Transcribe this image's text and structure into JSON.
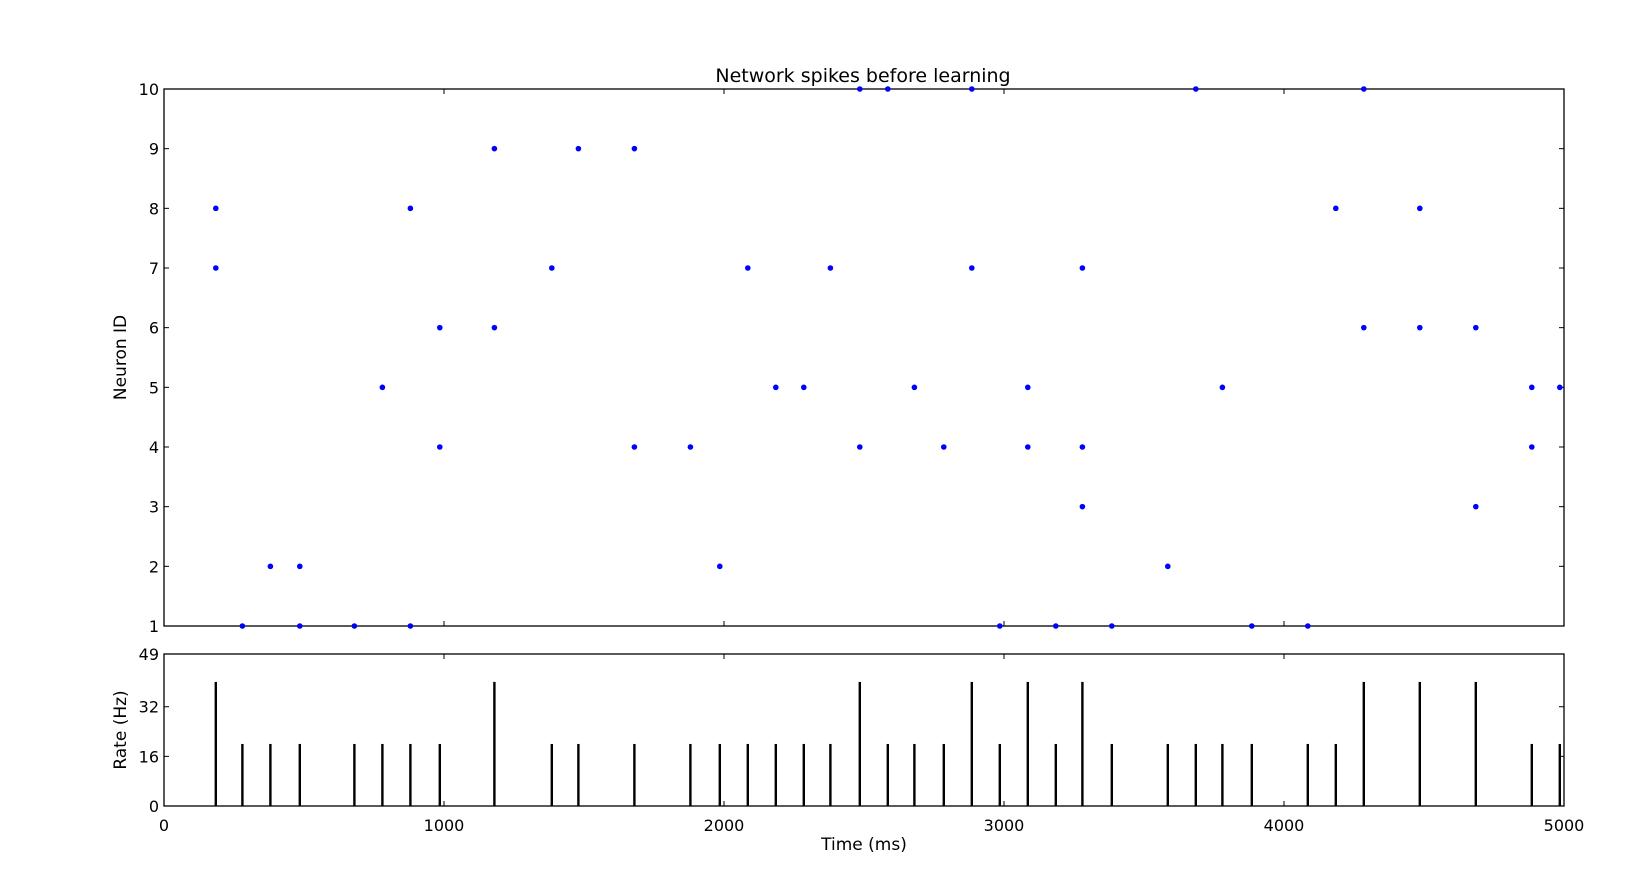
{
  "chart_data": [
    {
      "type": "scatter",
      "title": "Network spikes before learning",
      "xlabel": "",
      "ylabel": "Neuron ID",
      "xlim": [
        0,
        5000
      ],
      "ylim": [
        1,
        10
      ],
      "yticks": [
        "1",
        "2",
        "3",
        "4",
        "5",
        "6",
        "7",
        "8",
        "9",
        "10"
      ],
      "marker_color": "#0000ff",
      "grid": false,
      "series": [
        {
          "points": [
            [
              185,
              8
            ],
            [
              185,
              7
            ],
            [
              280,
              1
            ],
            [
              380,
              2
            ],
            [
              485,
              2
            ],
            [
              485,
              1
            ],
            [
              680,
              1
            ],
            [
              780,
              5
            ],
            [
              880,
              8
            ],
            [
              880,
              1
            ],
            [
              985,
              6
            ],
            [
              985,
              4
            ],
            [
              1180,
              9
            ],
            [
              1180,
              6
            ],
            [
              1385,
              7
            ],
            [
              1480,
              9
            ],
            [
              1680,
              9
            ],
            [
              1680,
              4
            ],
            [
              1880,
              4
            ],
            [
              1985,
              2
            ],
            [
              2085,
              7
            ],
            [
              2185,
              5
            ],
            [
              2285,
              5
            ],
            [
              2380,
              7
            ],
            [
              2485,
              10
            ],
            [
              2485,
              4
            ],
            [
              2585,
              10
            ],
            [
              2680,
              5
            ],
            [
              2785,
              4
            ],
            [
              2885,
              10
            ],
            [
              2885,
              7
            ],
            [
              2985,
              1
            ],
            [
              3085,
              5
            ],
            [
              3085,
              4
            ],
            [
              3185,
              1
            ],
            [
              3280,
              7
            ],
            [
              3280,
              4
            ],
            [
              3280,
              3
            ],
            [
              3385,
              1
            ],
            [
              3585,
              2
            ],
            [
              3685,
              10
            ],
            [
              3780,
              5
            ],
            [
              3885,
              1
            ],
            [
              4085,
              1
            ],
            [
              4185,
              8
            ],
            [
              4285,
              10
            ],
            [
              4285,
              6
            ],
            [
              4485,
              8
            ],
            [
              4485,
              6
            ],
            [
              4685,
              6
            ],
            [
              4685,
              3
            ],
            [
              4885,
              5
            ],
            [
              4885,
              4
            ],
            [
              4985,
              5
            ]
          ]
        }
      ]
    },
    {
      "type": "bar",
      "title": "",
      "xlabel": "Time (ms)",
      "ylabel": "Rate (Hz)",
      "xlim": [
        0,
        5000
      ],
      "ylim": [
        0,
        49
      ],
      "xticks": [
        "0",
        "1000",
        "2000",
        "3000",
        "4000",
        "5000"
      ],
      "yticks": [
        "0",
        "16",
        "32",
        "49"
      ],
      "bar_color": "#000000",
      "grid": false,
      "bars": [
        [
          185,
          40
        ],
        [
          280,
          20
        ],
        [
          380,
          20
        ],
        [
          485,
          20
        ],
        [
          680,
          20
        ],
        [
          780,
          20
        ],
        [
          880,
          20
        ],
        [
          985,
          20
        ],
        [
          1180,
          40
        ],
        [
          1385,
          20
        ],
        [
          1480,
          20
        ],
        [
          1680,
          20
        ],
        [
          1880,
          20
        ],
        [
          1985,
          20
        ],
        [
          2085,
          20
        ],
        [
          2185,
          20
        ],
        [
          2285,
          20
        ],
        [
          2380,
          20
        ],
        [
          2485,
          40
        ],
        [
          2585,
          20
        ],
        [
          2680,
          20
        ],
        [
          2785,
          20
        ],
        [
          2885,
          40
        ],
        [
          2985,
          20
        ],
        [
          3085,
          40
        ],
        [
          3185,
          20
        ],
        [
          3280,
          40
        ],
        [
          3385,
          20
        ],
        [
          3585,
          20
        ],
        [
          3685,
          20
        ],
        [
          3780,
          20
        ],
        [
          3885,
          20
        ],
        [
          4085,
          20
        ],
        [
          4185,
          20
        ],
        [
          4285,
          40
        ],
        [
          4485,
          40
        ],
        [
          4685,
          40
        ],
        [
          4885,
          20
        ],
        [
          4985,
          20
        ]
      ]
    }
  ]
}
